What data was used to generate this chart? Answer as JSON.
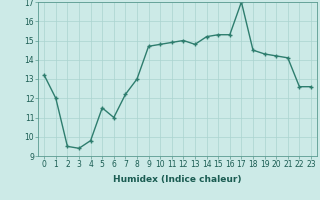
{
  "x": [
    0,
    1,
    2,
    3,
    4,
    5,
    6,
    7,
    8,
    9,
    10,
    11,
    12,
    13,
    14,
    15,
    16,
    17,
    18,
    19,
    20,
    21,
    22,
    23
  ],
  "y": [
    13.2,
    12.0,
    9.5,
    9.4,
    9.8,
    11.5,
    11.0,
    12.2,
    13.0,
    14.7,
    14.8,
    14.9,
    15.0,
    14.8,
    15.2,
    15.3,
    15.3,
    17.0,
    14.5,
    14.3,
    14.2,
    14.1,
    12.6,
    12.6
  ],
  "line_color": "#2e7d6e",
  "marker": "+",
  "marker_size": 3,
  "marker_lw": 1.0,
  "line_width": 1.0,
  "background_color": "#cceae7",
  "grid_color": "#aad4d0",
  "xlabel": "Humidex (Indice chaleur)",
  "ylim": [
    9,
    17
  ],
  "xlim": [
    -0.5,
    23.5
  ],
  "yticks": [
    9,
    10,
    11,
    12,
    13,
    14,
    15,
    16,
    17
  ],
  "xticks": [
    0,
    1,
    2,
    3,
    4,
    5,
    6,
    7,
    8,
    9,
    10,
    11,
    12,
    13,
    14,
    15,
    16,
    17,
    18,
    19,
    20,
    21,
    22,
    23
  ],
  "tick_fontsize": 5.5,
  "xlabel_fontsize": 6.5
}
